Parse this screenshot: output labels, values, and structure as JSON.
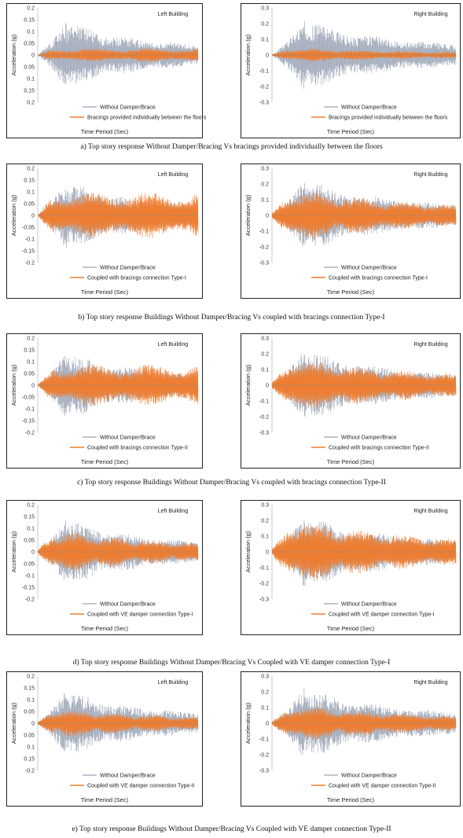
{
  "colors": {
    "without": "#9aa3b4",
    "with": "#ed7d31",
    "axis": "#bdbdbd",
    "frame": "#222222"
  },
  "rows": [
    {
      "caption": "a) Top story response Without Damper/Bracing Vs bracings provided individually between the floors",
      "charts": [
        {
          "building": "Left Building",
          "xlabel": "Time Period (Sec)",
          "ylabel": "Acceleration (g)",
          "yticks": [
            "0.2",
            "0.15",
            "0.1",
            "0.05",
            "0",
            "0.05",
            "0.1",
            "0.15",
            "0.2"
          ],
          "legend": [
            "Without Damper/Brace",
            "Bracings provided individually between the floors"
          ]
        },
        {
          "building": "Right Building",
          "xlabel": "Time Period (Sec)",
          "ylabel": "Acceleration (g)",
          "yticks": [
            "0.3",
            "0.2",
            "0.1",
            "0",
            "-0.1",
            "-0.2",
            "-0.3"
          ],
          "legend": [
            "Without Damper/Brace",
            "Bracings provided individually between the floors"
          ]
        }
      ]
    },
    {
      "caption": "b) Top story response Buildings Without Damper/Bracing Vs coupled with bracings connection Type-I",
      "charts": [
        {
          "building": "Left Building",
          "xlabel": "Time Period (Sec)",
          "ylabel": "Acceleration (g)",
          "yticks": [
            "0.2",
            "0.15",
            "0.1",
            "0.05",
            "0",
            "-0.05",
            "-0.1",
            "-0.15",
            "-0.2"
          ],
          "legend": [
            "Without Damper/Brace",
            "Coupled with bracings connection Type-I"
          ]
        },
        {
          "building": "Right Building",
          "xlabel": "Time Period (Sec)",
          "ylabel": "Acceleration (g)",
          "yticks": [
            "0.3",
            "0.2",
            "0.1",
            "0",
            "-0.1",
            "-0.2",
            "-0.3"
          ],
          "legend": [
            "Without Damper/Brace",
            "Coupled with bracings connection Type-I"
          ]
        }
      ]
    },
    {
      "caption": "c) Top story response Buildings Without Damper/Bracing Vs coupled with bracings connection Type-II",
      "charts": [
        {
          "building": "Left Building",
          "xlabel": "Time Period (Sec)",
          "ylabel": "Acceleration (g)",
          "yticks": [
            "0.2",
            "0.15",
            "0.1",
            "0.05",
            "0",
            "-0.05",
            "-0.1",
            "-0.15",
            "-0.2"
          ],
          "legend": [
            "Without Damper/Brace",
            "Coupled with bracings connection Type-II"
          ]
        },
        {
          "building": "Right Building",
          "xlabel": "Time Period (Sec)",
          "ylabel": "Acceleration (g)",
          "yticks": [
            "0.3",
            "0.2",
            "0.1",
            "0",
            "-0.1",
            "-0.2",
            "-0.3"
          ],
          "legend": [
            "Without Damper/Brace",
            "Coupled with bracings connection Type-II"
          ]
        }
      ]
    },
    {
      "caption": "d) Top story response Buildings  Without Damper/Bracing  Vs Coupled with VE damper connection Type-I",
      "charts": [
        {
          "building": "Left Building",
          "xlabel": "Time Period (Sec)",
          "ylabel": "Acceleration (g)",
          "yticks": [
            "0.2",
            "0.15",
            "0.1",
            "0.05",
            "0",
            "0.05",
            "-0.1",
            "-0.15",
            "-0.2"
          ],
          "legend": [
            "Without Damper/Brace",
            "Coupled with VE damper connection Type-I"
          ]
        },
        {
          "building": "Right Building",
          "xlabel": "Time Period (Sec)",
          "ylabel": "Acceleration (g)",
          "yticks": [
            "0.3",
            "0.2",
            "0.1",
            "0",
            "-0.1",
            "-0.2",
            "-0.3"
          ],
          "legend": [
            "Without Damper/Brace",
            "Coupled with VE damper connection Type-I"
          ]
        }
      ]
    },
    {
      "caption": "e) Top story response Buildings  Without Damper/Bracing  Vs Coupled with VE damper connection Type-II",
      "charts": [
        {
          "building": "Left Building",
          "xlabel": "Time Period (Sec)",
          "ylabel": "Acceleration (g)",
          "yticks": [
            "0.2",
            "0.15",
            "0.1",
            "0.05",
            "0",
            "0.05",
            "0.1",
            "0.15",
            "-0.2"
          ],
          "legend": [
            "Without Damper/Brace",
            "Coupled with VE damper connection Type-II"
          ]
        },
        {
          "building": "Right Building",
          "xlabel": "Time Period (Sec)",
          "ylabel": "Acceleration (g)",
          "yticks": [
            "0.3",
            "0.2",
            "0.1",
            "0",
            "-0.1",
            "-0.2",
            "-0.3"
          ],
          "legend": [
            "Without Damper/Brace",
            "Coupled with VE damper connection Type-II"
          ]
        }
      ]
    }
  ],
  "chart_data": [
    {
      "type": "line",
      "panel": "a-left",
      "title": "Left Building",
      "xlabel": "Time Period (Sec)",
      "ylabel": "Acceleration (g)",
      "ylim": [
        -0.2,
        0.2
      ],
      "series": [
        {
          "name": "Without Damper/Brace",
          "peak": 0.145
        },
        {
          "name": "Bracings provided individually between the floors",
          "peak": 0.03
        }
      ]
    },
    {
      "type": "line",
      "panel": "a-right",
      "title": "Right Building",
      "xlabel": "Time Period (Sec)",
      "ylabel": "Acceleration (g)",
      "ylim": [
        -0.3,
        0.3
      ],
      "series": [
        {
          "name": "Without Damper/Brace",
          "peak": 0.23
        },
        {
          "name": "Bracings provided individually between the floors",
          "peak": 0.05
        }
      ]
    },
    {
      "type": "line",
      "panel": "b-left",
      "title": "Left Building",
      "xlabel": "Time Period (Sec)",
      "ylabel": "Acceleration (g)",
      "ylim": [
        -0.2,
        0.2
      ],
      "series": [
        {
          "name": "Without Damper/Brace",
          "peak": 0.145
        },
        {
          "name": "Coupled with bracings connection Type-I",
          "peak": 0.1
        }
      ]
    },
    {
      "type": "line",
      "panel": "b-right",
      "title": "Right Building",
      "xlabel": "Time Period (Sec)",
      "ylabel": "Acceleration (g)",
      "ylim": [
        -0.3,
        0.3
      ],
      "series": [
        {
          "name": "Without Damper/Brace",
          "peak": 0.23
        },
        {
          "name": "Coupled with bracings connection Type-I",
          "peak": 0.18
        }
      ]
    },
    {
      "type": "line",
      "panel": "c-left",
      "title": "Left Building",
      "xlabel": "Time Period (Sec)",
      "ylabel": "Acceleration (g)",
      "ylim": [
        -0.2,
        0.2
      ],
      "series": [
        {
          "name": "Without Damper/Brace",
          "peak": 0.145
        },
        {
          "name": "Coupled with bracings connection Type-II",
          "peak": 0.09
        }
      ]
    },
    {
      "type": "line",
      "panel": "c-right",
      "title": "Right Building",
      "xlabel": "Time Period (Sec)",
      "ylabel": "Acceleration (g)",
      "ylim": [
        -0.3,
        0.3
      ],
      "series": [
        {
          "name": "Without Damper/Brace",
          "peak": 0.23
        },
        {
          "name": "Coupled with bracings connection Type-II",
          "peak": 0.19
        }
      ]
    },
    {
      "type": "line",
      "panel": "d-left",
      "title": "Left Building",
      "xlabel": "Time Period (Sec)",
      "ylabel": "Acceleration (g)",
      "ylim": [
        -0.2,
        0.2
      ],
      "series": [
        {
          "name": "Without Damper/Brace",
          "peak": 0.145
        },
        {
          "name": "Coupled with VE damper connection Type-I",
          "peak": 0.1
        }
      ]
    },
    {
      "type": "line",
      "panel": "d-right",
      "title": "Right Building",
      "xlabel": "Time Period (Sec)",
      "ylabel": "Acceleration (g)",
      "ylim": [
        -0.3,
        0.3
      ],
      "series": [
        {
          "name": "Without Damper/Brace",
          "peak": 0.23
        },
        {
          "name": "Coupled with VE damper connection Type-I",
          "peak": 0.22
        }
      ]
    },
    {
      "type": "line",
      "panel": "e-left",
      "title": "Left Building",
      "xlabel": "Time Period (Sec)",
      "ylabel": "Acceleration (g)",
      "ylim": [
        -0.2,
        0.2
      ],
      "series": [
        {
          "name": "Without Damper/Brace",
          "peak": 0.145
        },
        {
          "name": "Coupled with VE damper connection Type-II",
          "peak": 0.07
        }
      ]
    },
    {
      "type": "line",
      "panel": "e-right",
      "title": "Right Building",
      "xlabel": "Time Period (Sec)",
      "ylabel": "Acceleration (g)",
      "ylim": [
        -0.3,
        0.3
      ],
      "series": [
        {
          "name": "Without Damper/Brace",
          "peak": 0.23
        },
        {
          "name": "Coupled with VE damper connection Type-II",
          "peak": 0.13
        }
      ]
    }
  ]
}
